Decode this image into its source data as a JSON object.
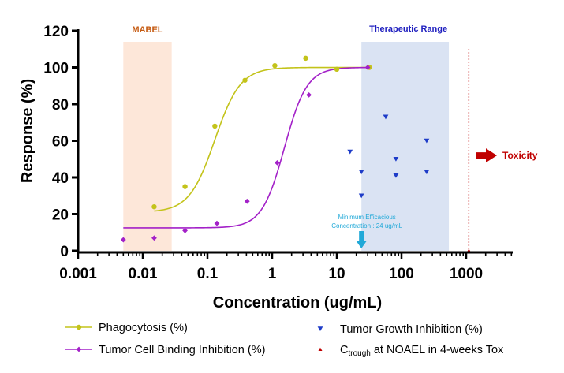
{
  "chart_data": {
    "type": "scatter",
    "xlabel": "Concentration (ug/mL)",
    "ylabel": "Response (%)",
    "x_scale": "log",
    "xlim": [
      0.001,
      5000
    ],
    "ylim": [
      0,
      120
    ],
    "x_ticks": [
      {
        "value": 0.001,
        "label": "0.001"
      },
      {
        "value": 0.01,
        "label": "0.01"
      },
      {
        "value": 0.1,
        "label": "0.1"
      },
      {
        "value": 1,
        "label": "1"
      },
      {
        "value": 10,
        "label": "10"
      },
      {
        "value": 100,
        "label": "100"
      },
      {
        "value": 1000,
        "label": "1000"
      }
    ],
    "y_ticks": [
      0,
      20,
      40,
      60,
      80,
      100,
      120
    ],
    "grid": false,
    "legend_position": "bottom",
    "regions": [
      {
        "label": "MABEL",
        "x_range": [
          0.005,
          0.028
        ],
        "fill": "#fde7d9",
        "label_color": "#c55a11"
      },
      {
        "label": "Therapeutic Range",
        "x_range": [
          24,
          540
        ],
        "fill": "#dae3f3",
        "label_color": "#1f1fbf"
      }
    ],
    "series": [
      {
        "name": "Phagocytosis (%)",
        "color": "#c3c31a",
        "marker": "circle",
        "x": [
          0.015,
          0.045,
          0.13,
          0.38,
          1.1,
          3.3,
          10,
          32
        ],
        "y": [
          24,
          35,
          68,
          93,
          101,
          105,
          99,
          100
        ],
        "fit": {
          "bottom": 21,
          "top": 100,
          "ec50": 0.13,
          "hill": 2.2,
          "x_range": [
            0.015,
            32
          ]
        }
      },
      {
        "name": "Tumor Cell Binding Inhibition (%)",
        "color": "#a321c8",
        "marker": "diamond",
        "x": [
          0.005,
          0.015,
          0.045,
          0.14,
          0.41,
          1.2,
          3.7,
          30
        ],
        "y": [
          6,
          7,
          11,
          15,
          27,
          48,
          85,
          100
        ],
        "fit": {
          "bottom": 12.5,
          "top": 100,
          "ec50": 1.55,
          "hill": 2.5,
          "x_range": [
            0.005,
            30
          ]
        }
      },
      {
        "name": "Tumor Growth Inhibition (%)",
        "color": "#1e3cc8",
        "marker": "triangle-down",
        "x": [
          16,
          24,
          24,
          57,
          82,
          82,
          245,
          245
        ],
        "y": [
          54,
          43,
          30,
          73,
          50,
          41,
          60,
          43
        ]
      },
      {
        "name": "NOAEL",
        "color": "#c00000",
        "marker": "triangle-up",
        "x": [
          1100
        ],
        "y": [
          0
        ]
      }
    ],
    "legend": [
      {
        "label": "Phagocytosis (%)",
        "series": 0
      },
      {
        "label": "Tumor Growth Inhibition (%)",
        "series": 2
      },
      {
        "label": "Tumor Cell Binding Inhibition (%)",
        "series": 1
      },
      {
        "label_prefix": "C",
        "label_sub": "trough",
        "label_suffix": " at  NOAEL in 4-weeks Tox",
        "series": 3
      }
    ],
    "annotations": {
      "noael_line": {
        "x": 1100,
        "color": "#c00000"
      },
      "toxicity": {
        "label": "Toxicity",
        "color": "#c00000",
        "y": 52
      },
      "mec": {
        "line1": "Minimum Efficacious",
        "line2": "Concentration : 24 ug/mL",
        "x": 24,
        "color": "#21a9d8"
      }
    }
  }
}
